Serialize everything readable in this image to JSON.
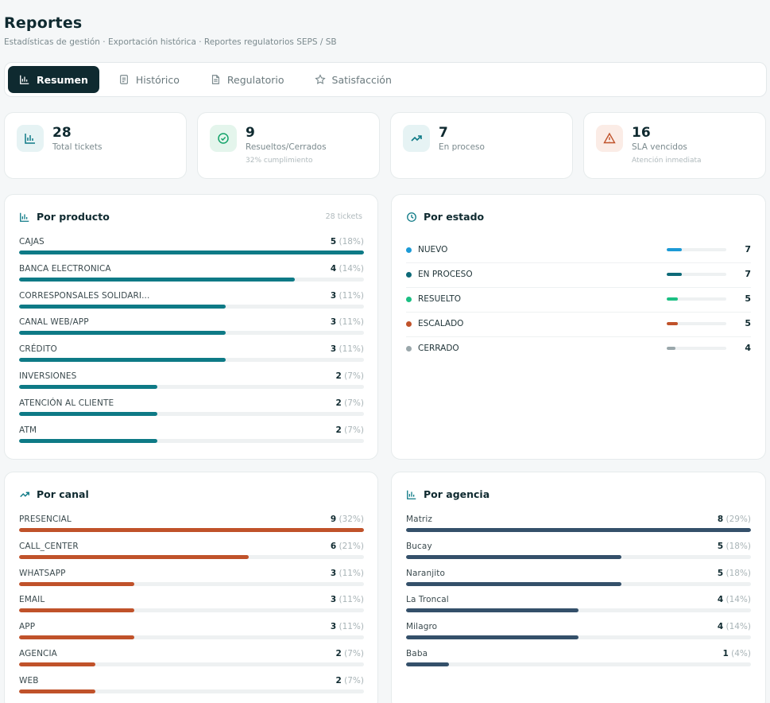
{
  "page": {
    "title": "Reportes",
    "subtitle": "Estadísticas de gestión · Exportación histórica · Reportes regulatorios SEPS / SB"
  },
  "tabs": [
    {
      "label": "Resumen",
      "icon": "bar-chart-icon",
      "active": true
    },
    {
      "label": "Histórico",
      "icon": "document-icon",
      "active": false
    },
    {
      "label": "Regulatorio",
      "icon": "file-text-icon",
      "active": false
    },
    {
      "label": "Satisfacción",
      "icon": "star-icon",
      "active": false
    }
  ],
  "stats": [
    {
      "value": "28",
      "label": "Total tickets",
      "sub": "",
      "icon": "bar-chart-icon",
      "color": "#0e7a86",
      "bg": "#e6f3f4"
    },
    {
      "value": "9",
      "label": "Resueltos/Cerrados",
      "sub": "32% cumplimiento",
      "icon": "check-circle-icon",
      "color": "#14a36a",
      "bg": "#e4f5ec"
    },
    {
      "value": "7",
      "label": "En proceso",
      "sub": "",
      "icon": "trending-up-icon",
      "color": "#0e7a86",
      "bg": "#e6f3f4"
    },
    {
      "value": "16",
      "label": "SLA vencidos",
      "sub": "Atención inmediata",
      "icon": "warning-icon",
      "color": "#c0522a",
      "bg": "#fbece6"
    }
  ],
  "por_producto": {
    "title": "Por producto",
    "meta": "28 tickets",
    "color": "#0e7a86",
    "rows": [
      {
        "label": "CAJAS",
        "count": "5",
        "pct": "(18%)",
        "fill": 1.0
      },
      {
        "label": "BANCA ELECTRONICA",
        "count": "4",
        "pct": "(14%)",
        "fill": 0.8
      },
      {
        "label": "CORRESPONSALES SOLIDARI...",
        "count": "3",
        "pct": "(11%)",
        "fill": 0.6
      },
      {
        "label": "CANAL WEB/APP",
        "count": "3",
        "pct": "(11%)",
        "fill": 0.6
      },
      {
        "label": "CRÉDITO",
        "count": "3",
        "pct": "(11%)",
        "fill": 0.6
      },
      {
        "label": "INVERSIONES",
        "count": "2",
        "pct": "(7%)",
        "fill": 0.4
      },
      {
        "label": "ATENCIÓN AL CLIENTE",
        "count": "2",
        "pct": "(7%)",
        "fill": 0.4
      },
      {
        "label": "ATM",
        "count": "2",
        "pct": "(7%)",
        "fill": 0.4
      }
    ]
  },
  "por_estado": {
    "title": "Por estado",
    "rows": [
      {
        "label": "NUEVO",
        "count": "7",
        "color": "#1c9ad6",
        "fill": 0.25
      },
      {
        "label": "EN PROCESO",
        "count": "7",
        "color": "#0e6a78",
        "fill": 0.25
      },
      {
        "label": "RESUELTO",
        "count": "5",
        "color": "#1bbf83",
        "fill": 0.18
      },
      {
        "label": "ESCALADO",
        "count": "5",
        "color": "#c0522a",
        "fill": 0.18
      },
      {
        "label": "CERRADO",
        "count": "4",
        "color": "#9aa7ab",
        "fill": 0.14
      }
    ]
  },
  "por_canal": {
    "title": "Por canal",
    "color": "#c0522a",
    "rows": [
      {
        "label": "PRESENCIAL",
        "count": "9",
        "pct": "(32%)",
        "fill": 1.0
      },
      {
        "label": "CALL_CENTER",
        "count": "6",
        "pct": "(21%)",
        "fill": 0.667
      },
      {
        "label": "WHATSAPP",
        "count": "3",
        "pct": "(11%)",
        "fill": 0.333
      },
      {
        "label": "EMAIL",
        "count": "3",
        "pct": "(11%)",
        "fill": 0.333
      },
      {
        "label": "APP",
        "count": "3",
        "pct": "(11%)",
        "fill": 0.333
      },
      {
        "label": "AGENCIA",
        "count": "2",
        "pct": "(7%)",
        "fill": 0.222
      },
      {
        "label": "WEB",
        "count": "2",
        "pct": "(7%)",
        "fill": 0.222
      }
    ]
  },
  "por_agencia": {
    "title": "Por agencia",
    "color": "#34506a",
    "rows": [
      {
        "label": "Matriz",
        "count": "8",
        "pct": "(29%)",
        "fill": 1.0
      },
      {
        "label": "Bucay",
        "count": "5",
        "pct": "(18%)",
        "fill": 0.625
      },
      {
        "label": "Naranjito",
        "count": "5",
        "pct": "(18%)",
        "fill": 0.625
      },
      {
        "label": "La Troncal",
        "count": "4",
        "pct": "(14%)",
        "fill": 0.5
      },
      {
        "label": "Milagro",
        "count": "4",
        "pct": "(14%)",
        "fill": 0.5
      },
      {
        "label": "Baba",
        "count": "1",
        "pct": "(4%)",
        "fill": 0.125
      }
    ]
  }
}
